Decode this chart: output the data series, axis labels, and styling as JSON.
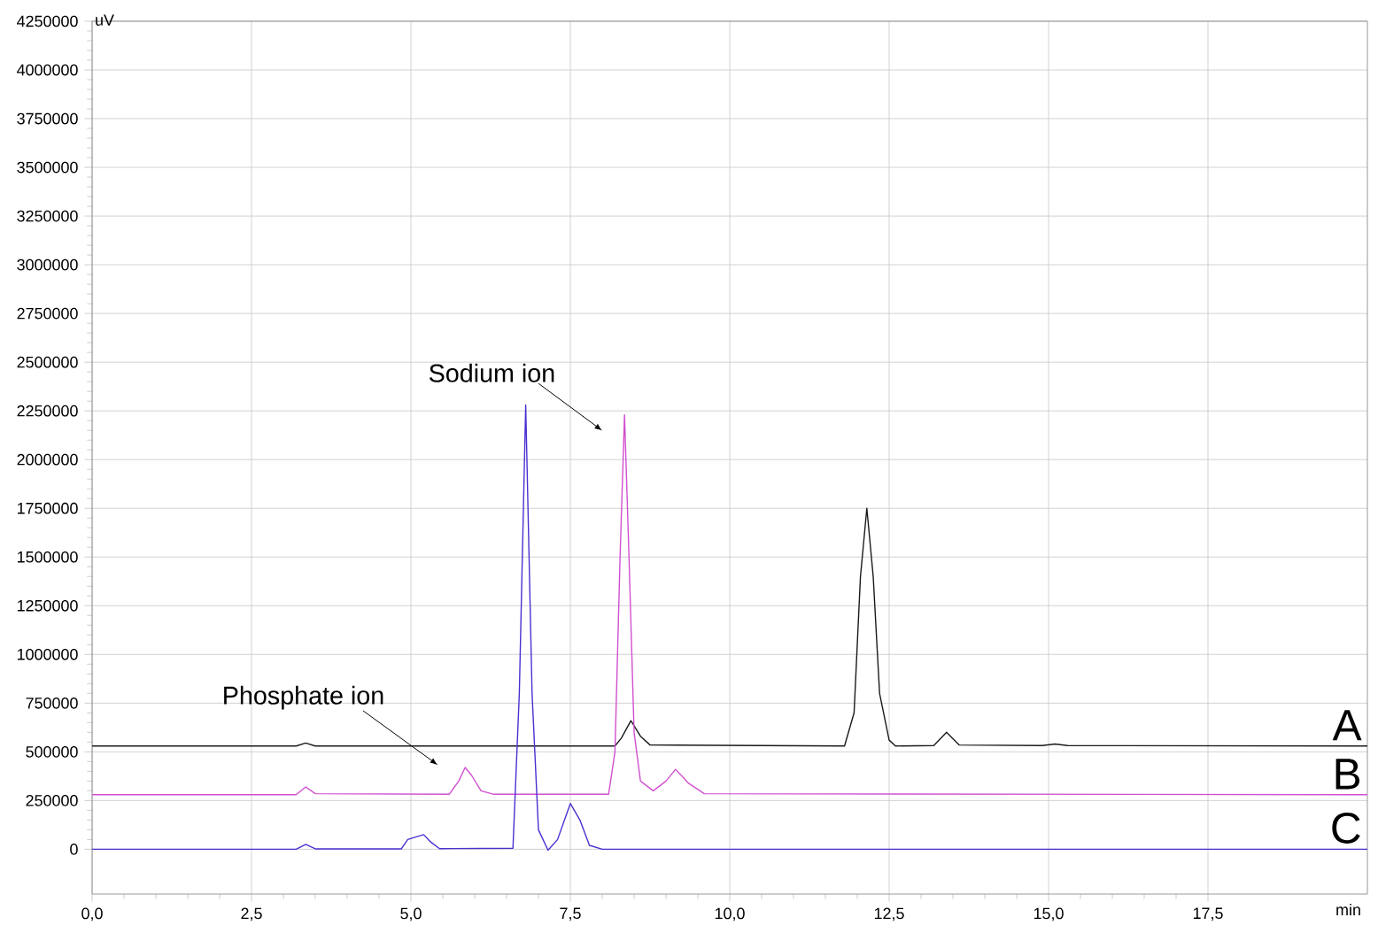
{
  "chart_data": {
    "type": "line",
    "xlabel": "min",
    "ylabel": "uV",
    "xlim": [
      0,
      20
    ],
    "ylim": [
      -230000,
      4250000
    ],
    "xticks": [
      {
        "value": 0,
        "label": "0,0"
      },
      {
        "value": 2.5,
        "label": "2,5"
      },
      {
        "value": 5,
        "label": "5,0"
      },
      {
        "value": 7.5,
        "label": "7,5"
      },
      {
        "value": 10,
        "label": "10,0"
      },
      {
        "value": 12.5,
        "label": "12,5"
      },
      {
        "value": 15,
        "label": "15,0"
      },
      {
        "value": 17.5,
        "label": "17,5"
      }
    ],
    "yticks": [
      0,
      250000,
      500000,
      750000,
      1000000,
      1250000,
      1500000,
      1750000,
      2000000,
      2250000,
      2500000,
      2750000,
      3000000,
      3250000,
      3500000,
      3750000,
      4000000,
      4250000
    ],
    "grid": true,
    "marker": "none",
    "line_style": "solid",
    "series": [
      {
        "name": "A",
        "color": "#1a1a1a",
        "x": [
          0,
          3.2,
          3.35,
          3.5,
          8.2,
          8.3,
          8.45,
          8.6,
          8.75,
          11.8,
          11.95,
          12.05,
          12.15,
          12.25,
          12.35,
          12.5,
          12.6,
          13.2,
          13.4,
          13.6,
          14.9,
          15.1,
          15.3,
          20
        ],
        "values": [
          530000,
          530000,
          545000,
          530000,
          530000,
          570000,
          660000,
          580000,
          535000,
          530000,
          700000,
          1400000,
          1750000,
          1400000,
          800000,
          560000,
          530000,
          532000,
          600000,
          535000,
          532000,
          540000,
          532000,
          530000
        ]
      },
      {
        "name": "B",
        "color": "#d050d0",
        "x": [
          0,
          3.2,
          3.35,
          3.5,
          5.6,
          5.75,
          5.85,
          5.95,
          6.1,
          6.3,
          8.1,
          8.2,
          8.28,
          8.35,
          8.42,
          8.5,
          8.6,
          8.8,
          9.0,
          9.15,
          9.35,
          9.6,
          20
        ],
        "values": [
          280000,
          280000,
          320000,
          285000,
          282000,
          350000,
          420000,
          380000,
          300000,
          282000,
          282000,
          500000,
          1500000,
          2230000,
          1500000,
          600000,
          350000,
          300000,
          350000,
          410000,
          340000,
          285000,
          280000
        ]
      },
      {
        "name": "C",
        "color": "#4b2fd0",
        "x": [
          0,
          3.2,
          3.35,
          3.5,
          4.85,
          4.95,
          5.05,
          5.2,
          5.3,
          5.45,
          6.6,
          6.7,
          6.8,
          6.9,
          7.0,
          7.15,
          7.3,
          7.5,
          7.65,
          7.8,
          8.0,
          20
        ],
        "values": [
          0,
          0,
          25000,
          2000,
          2000,
          50000,
          60000,
          75000,
          40000,
          3000,
          5000,
          800000,
          2280000,
          800000,
          100000,
          -5000,
          50000,
          235000,
          150000,
          20000,
          0,
          0
        ]
      }
    ],
    "annotations": [
      "Sodium ion",
      "Phosphate ion"
    ]
  }
}
